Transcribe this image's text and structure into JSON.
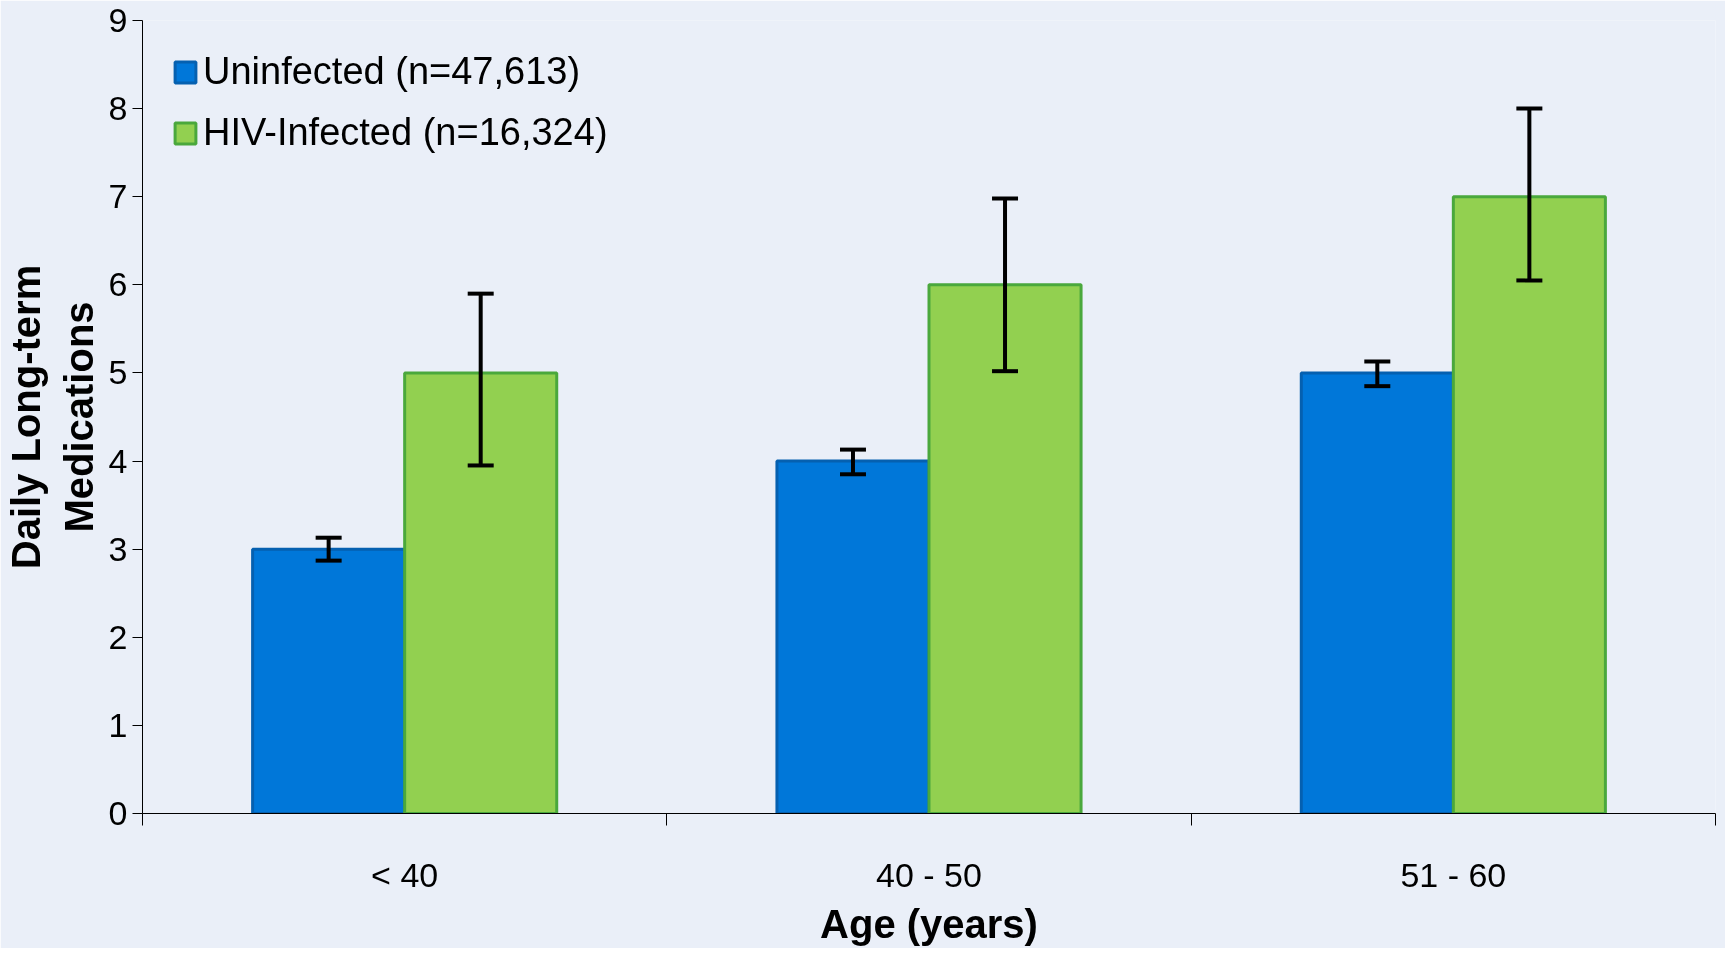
{
  "chart_data": {
    "type": "bar",
    "xlabel": "Age (years)",
    "ylabel": "Daily Long-term Medications",
    "categories": [
      "< 40",
      "40 - 50",
      "51 - 60"
    ],
    "series": [
      {
        "name": "Uninfected (n=47,613)",
        "color": "#0077d9",
        "values": [
          3,
          4,
          5
        ],
        "errors": [
          [
            2.87,
            3.13
          ],
          [
            3.85,
            4.13
          ],
          [
            4.85,
            5.13
          ]
        ]
      },
      {
        "name": "HIV-Infected (n=16,324)",
        "color": "#92d050",
        "values": [
          5,
          6,
          7
        ],
        "errors": [
          [
            3.95,
            5.9
          ],
          [
            5.02,
            6.98
          ],
          [
            6.05,
            8.0
          ]
        ]
      }
    ],
    "ylim": [
      0,
      9
    ],
    "yticks": [
      0,
      1,
      2,
      3,
      4,
      5,
      6,
      7,
      8,
      9
    ],
    "grid": false,
    "legend": "top left"
  }
}
